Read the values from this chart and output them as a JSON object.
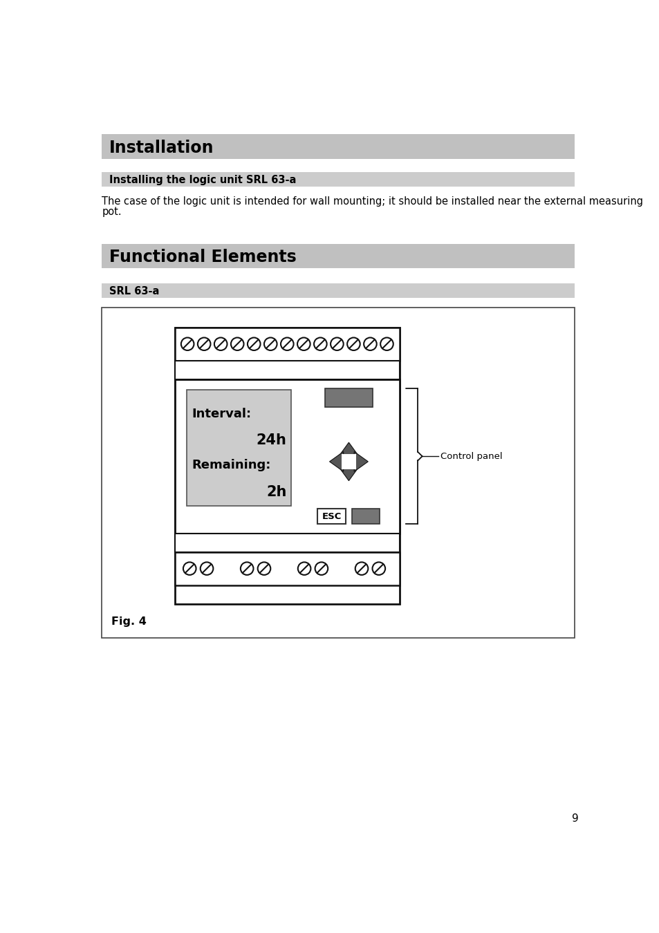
{
  "title_installation": "Installation",
  "subtitle_installing": "Installing the logic unit SRL 63-a",
  "body_text_line1": "The case of the logic unit is intended for wall mounting; it should be installed near the external measuring",
  "body_text_line2": "pot.",
  "title_functional": "Functional Elements",
  "subtitle_srl": "SRL 63-a",
  "fig_label": "Fig. 4",
  "control_panel_label": "Control panel",
  "display_line1": "Interval:",
  "display_line2": "24h",
  "display_line3": "Remaining:",
  "display_line4": "2h",
  "esc_label": "ESC",
  "bg_color": "#ffffff",
  "header_bg": "#c0c0c0",
  "subheader_bg": "#cccccc",
  "display_bg": "#cccccc",
  "button_dark": "#757575",
  "page_number": "9"
}
